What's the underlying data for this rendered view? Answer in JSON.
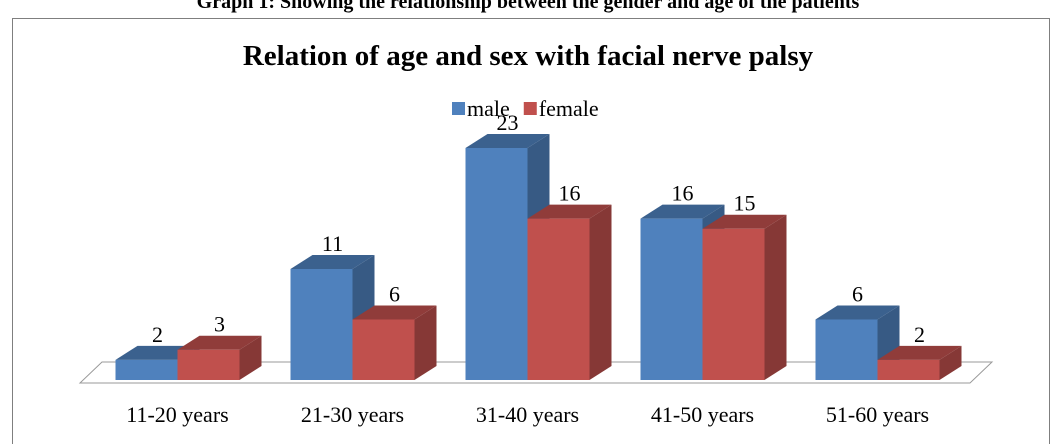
{
  "caption": "Graph 1: Showing the relationship between the gender and age of the patients",
  "chart_data": {
    "type": "bar3d",
    "title": "Relation of age and sex with facial nerve palsy",
    "categories": [
      "11-20 years",
      "21-30 years",
      "31-40 years",
      "41-50 years",
      "51-60 years"
    ],
    "series": [
      {
        "name": "male",
        "color": "#4f81bd",
        "values": [
          2,
          11,
          23,
          16,
          6
        ]
      },
      {
        "name": "female",
        "color": "#c0504d",
        "values": [
          3,
          6,
          16,
          15,
          2
        ]
      }
    ],
    "legend": "top"
  }
}
